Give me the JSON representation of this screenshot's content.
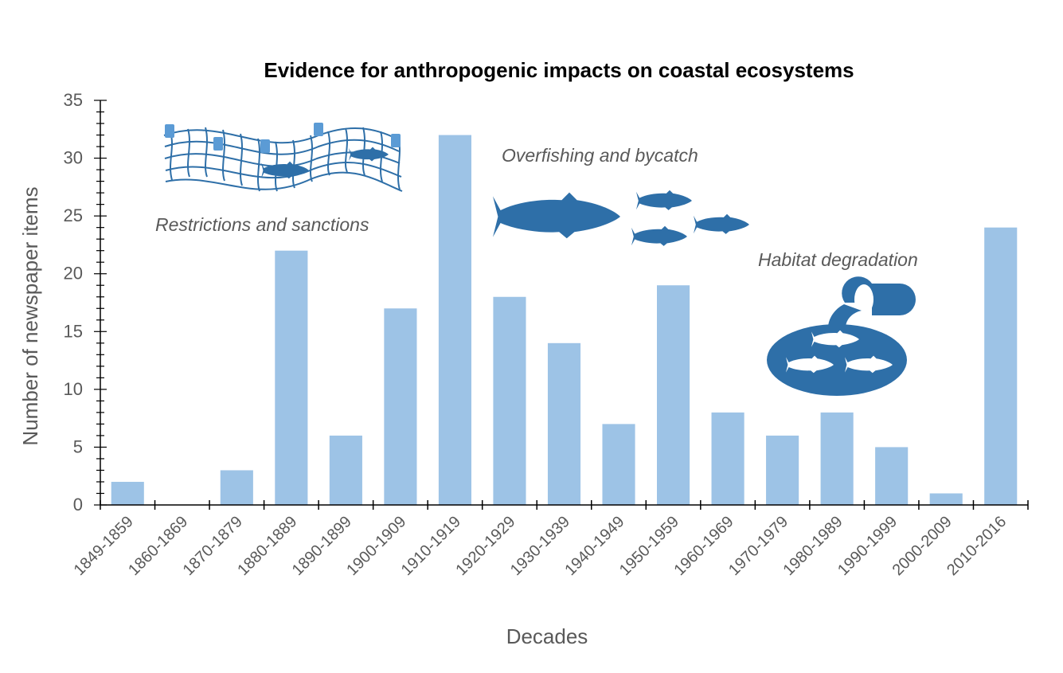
{
  "chart_data": {
    "type": "bar",
    "title": "Evidence for anthropogenic impacts on coastal ecosystems",
    "xlabel": "Decades",
    "ylabel": "Number of newspaper items",
    "ylim": [
      0,
      35
    ],
    "yticks": [
      0,
      5,
      10,
      15,
      20,
      25,
      30,
      35
    ],
    "grid": false,
    "legend": "none",
    "bar_color": "#9dc3e6",
    "icon_color": "#2e6fa8",
    "categories": [
      "1849-1859",
      "1860-1869",
      "1870-1879",
      "1880-1889",
      "1890-1899",
      "1900-1909",
      "1910-1919",
      "1920-1929",
      "1930-1939",
      "1940-1949",
      "1950-1959",
      "1960-1969",
      "1970-1979",
      "1980-1989",
      "1990-1999",
      "2000-2009",
      "2010-2016"
    ],
    "values": [
      2,
      0,
      3,
      22,
      6,
      17,
      32,
      18,
      14,
      7,
      19,
      8,
      6,
      8,
      5,
      1,
      24
    ],
    "annotations": [
      {
        "text": "Restrictions and sanctions",
        "icon": "fishing-net-icon"
      },
      {
        "text": "Overfishing and bycatch",
        "icon": "fish-school-icon"
      },
      {
        "text": "Habitat degradation",
        "icon": "pipe-pollution-icon"
      }
    ]
  }
}
